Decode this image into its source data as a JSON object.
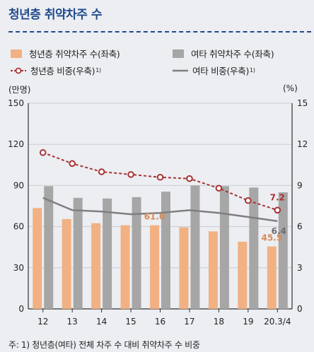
{
  "title": "청년층 취약차주 수",
  "legend": {
    "youth_count": "청년층 취약차주 수(좌축)",
    "other_count": "여타 취약차주 수(좌축)",
    "youth_share": "청년층 비중(우축)",
    "other_share": "여타 비중(우축)",
    "note_mark": "1)"
  },
  "left_unit": "(만명)",
  "right_unit": "(%)",
  "footnote": "주: 1) 청년층(여타) 전체 차주 수 대비 취약차주 수 비중",
  "colors": {
    "youth_bar": "#f2b183",
    "other_bar": "#a6a6a6",
    "youth_line": "#a83232",
    "other_line": "#7f7f7f",
    "youth_label": "#d98a5a",
    "youth_line_label": "#b03030",
    "other_line_label": "#6e6e6e"
  },
  "chart_data": {
    "type": "bar",
    "categories": [
      "12",
      "13",
      "14",
      "15",
      "16",
      "17",
      "18",
      "19",
      "20.3/4"
    ],
    "series": [
      {
        "name": "청년층 취약차주 수(좌축)",
        "type": "bar",
        "axis": "left",
        "values": [
          73.5,
          65.5,
          62.5,
          61.0,
          61.0,
          59.5,
          56.5,
          49.0,
          45.5
        ]
      },
      {
        "name": "여타 취약차주 수(좌축)",
        "type": "bar",
        "axis": "left",
        "values": [
          89.5,
          81.0,
          80.5,
          81.5,
          85.5,
          90.0,
          89.5,
          88.5,
          85.0
        ]
      },
      {
        "name": "청년층 비중(우축)",
        "type": "line",
        "axis": "right",
        "values": [
          11.4,
          10.6,
          10.0,
          9.8,
          9.6,
          9.5,
          8.8,
          7.9,
          7.2
        ]
      },
      {
        "name": "여타 비중(우축)",
        "type": "line",
        "axis": "right",
        "values": [
          8.1,
          7.2,
          7.1,
          6.9,
          7.0,
          7.2,
          7.0,
          6.7,
          6.4
        ]
      }
    ],
    "left_axis": {
      "ticks": [
        "0",
        "30",
        "60",
        "90",
        "120",
        "150"
      ],
      "ylim": [
        0,
        150
      ]
    },
    "right_axis": {
      "ticks": [
        "0",
        "3",
        "6",
        "9",
        "12",
        "15"
      ],
      "ylim": [
        0,
        15
      ]
    },
    "annotations": {
      "youth_count_label": "45.5",
      "youth_count_label_16": "61.0",
      "youth_share_label": "7.2",
      "other_share_label": "6.4"
    },
    "grid": true,
    "legend_position": "top"
  }
}
